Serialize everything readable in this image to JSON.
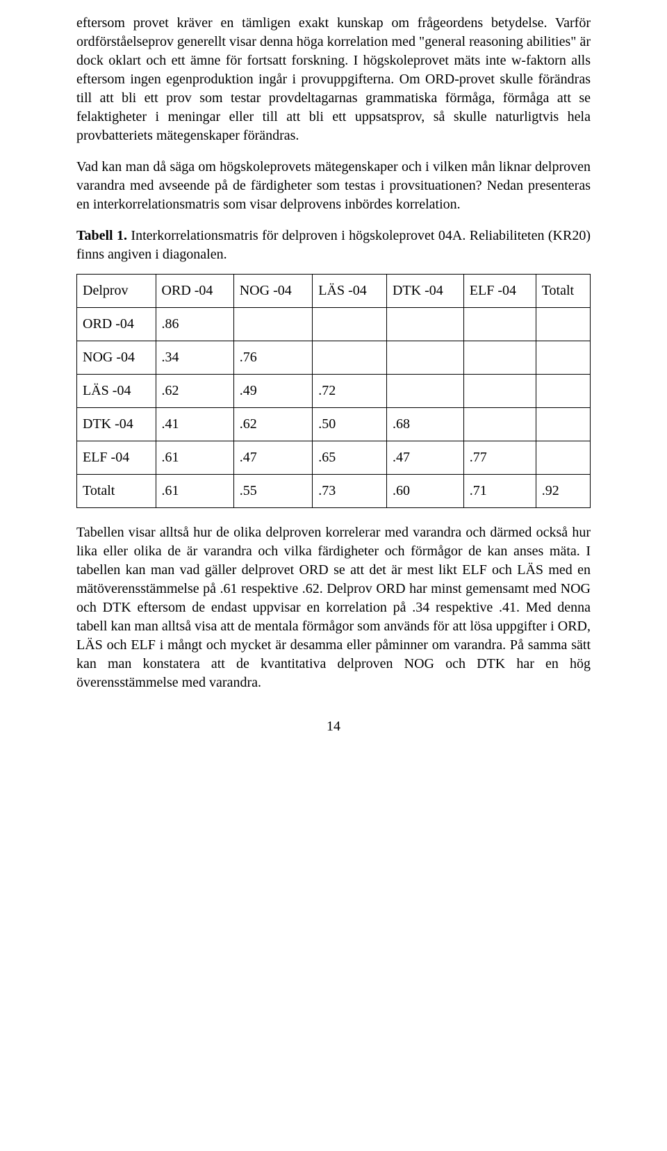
{
  "paragraphs": {
    "p1": "eftersom provet kräver en tämligen exakt kunskap om frågeordens betydelse. Varför ordförståelseprov generellt visar denna höga korrelation med \"general reasoning abilities\" är dock oklart och ett ämne för fortsatt forskning. I högskoleprovet mäts inte w-faktorn alls eftersom ingen egenproduktion ingår i provuppgifterna. Om ORD-provet skulle förändras till att bli ett prov som testar provdeltagarnas grammatiska förmåga, förmåga att se felaktigheter i meningar eller till att bli ett uppsatsprov, så skulle naturligtvis hela provbatteriets mätegenskaper förändras.",
    "p2": "Vad kan man då säga om högskoleprovets mätegenskaper och i vilken mån liknar delproven varandra med avseende på de färdigheter som testas i provsituationen? Nedan presenteras en interkorrelationsmatris som visar delprovens inbördes korrelation.",
    "p3": "Tabellen visar alltså hur de olika delproven korrelerar med varandra och därmed också hur lika eller olika de är varandra och vilka färdigheter och förmågor de kan anses mäta. I tabellen kan man vad gäller delprovet ORD se att det är mest likt ELF och LÄS med en mätöverensstämmelse på .61 respektive .62. Delprov ORD har minst gemensamt med NOG och DTK eftersom de endast uppvisar en korrelation på .34 respektive .41. Med denna tabell kan man alltså visa att de mentala förmågor som används för att lösa uppgifter i ORD, LÄS och ELF i mångt och mycket är desamma eller påminner om varandra. På samma sätt kan man konstatera att de kvantitativa delproven NOG och DTK har en hög överensstämmelse med varandra."
  },
  "tableCaption": {
    "label": "Tabell 1.",
    "text": " Interkorrelationsmatris för delproven i högskoleprovet 04A. Reliabiliteten (KR20) finns angiven i diagonalen."
  },
  "table": {
    "columns": [
      "Delprov",
      "ORD -04",
      "NOG -04",
      "LÄS -04",
      "DTK -04",
      "ELF -04",
      "Totalt"
    ],
    "rows": [
      [
        "ORD -04",
        ".86",
        "",
        "",
        "",
        "",
        ""
      ],
      [
        "NOG -04",
        ".34",
        ".76",
        "",
        "",
        "",
        ""
      ],
      [
        "LÄS -04",
        ".62",
        ".49",
        ".72",
        "",
        "",
        ""
      ],
      [
        "DTK -04",
        ".41",
        ".62",
        ".50",
        ".68",
        "",
        ""
      ],
      [
        "ELF -04",
        ".61",
        ".47",
        ".65",
        ".47",
        ".77",
        ""
      ],
      [
        "Totalt",
        ".61",
        ".55",
        ".73",
        ".60",
        ".71",
        ".92"
      ]
    ]
  },
  "pageNumber": "14"
}
